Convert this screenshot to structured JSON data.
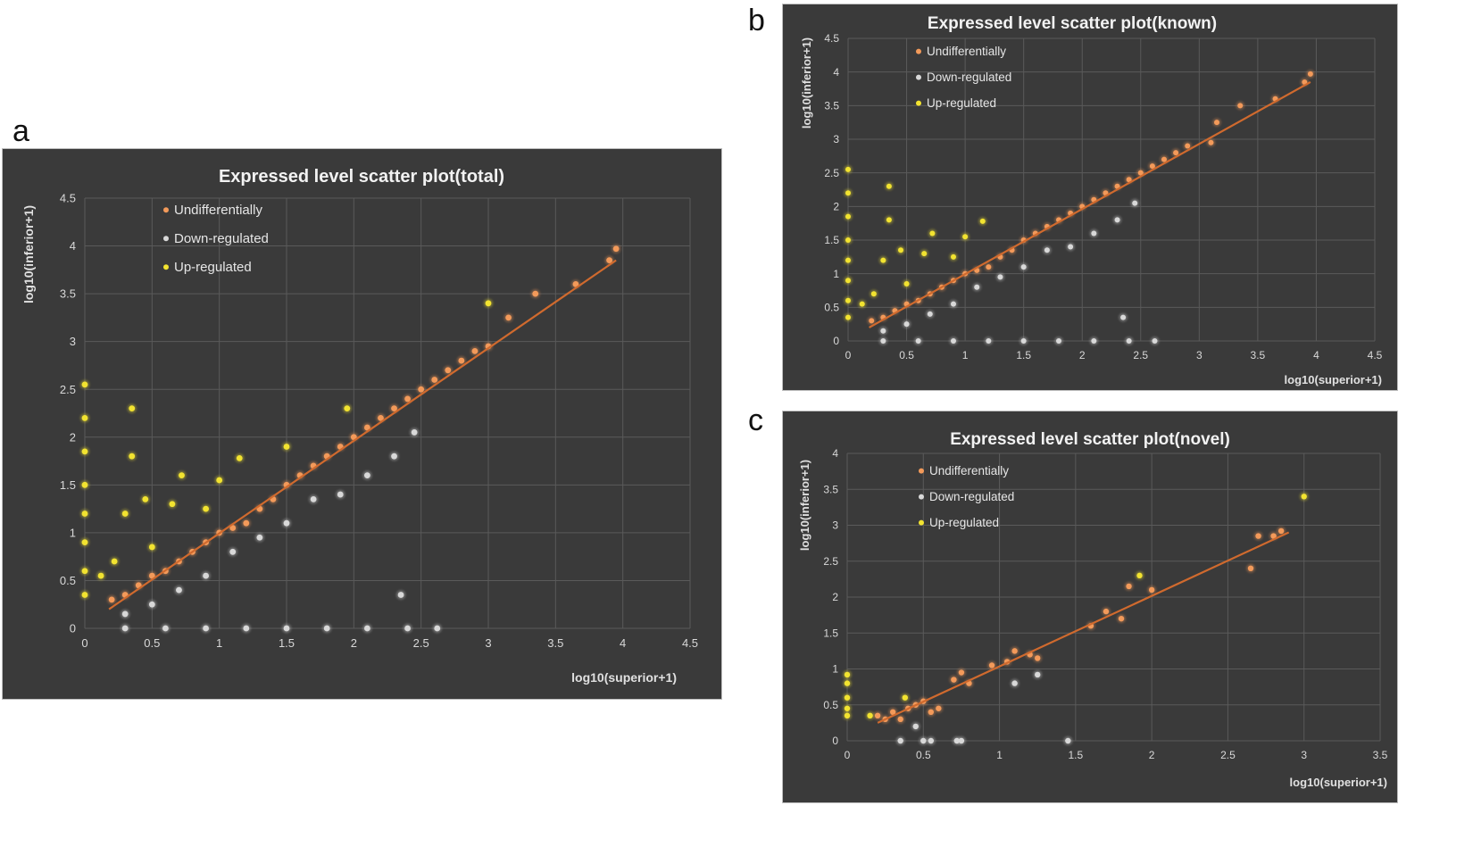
{
  "panels": {
    "a": "a",
    "b": "b",
    "c": "c"
  },
  "colors": {
    "background": "#3a3a3a",
    "grid": "#5a5a5a",
    "undiff": "#f39a5a",
    "down": "#d8d8d8",
    "up": "#f2e330",
    "trend": "#d06a2e"
  },
  "chart_data": [
    {
      "id": "a",
      "type": "scatter",
      "title": "Expressed level scatter plot(total)",
      "xlabel": "log10(superior+1)",
      "ylabel": "log10(inferior+1)",
      "xlim": [
        0,
        4.5
      ],
      "ylim": [
        0,
        4.5
      ],
      "xticks": [
        "0",
        "0.5",
        "1",
        "1.5",
        "2",
        "2.5",
        "3",
        "3.5",
        "4",
        "4.5"
      ],
      "yticks": [
        "0",
        "0.5",
        "1",
        "1.5",
        "2",
        "2.5",
        "3",
        "3.5",
        "4",
        "4.5"
      ],
      "grid": true,
      "legend_position": "top-left",
      "trendline": [
        [
          0.18,
          0.2
        ],
        [
          3.95,
          3.85
        ]
      ],
      "series": [
        {
          "name": "Undifferentially",
          "color": "#f39a5a",
          "points": [
            [
              0.2,
              0.3
            ],
            [
              0.3,
              0.35
            ],
            [
              0.4,
              0.45
            ],
            [
              0.5,
              0.55
            ],
            [
              0.6,
              0.6
            ],
            [
              0.7,
              0.7
            ],
            [
              0.8,
              0.8
            ],
            [
              0.9,
              0.9
            ],
            [
              1.0,
              1.0
            ],
            [
              1.1,
              1.05
            ],
            [
              1.2,
              1.1
            ],
            [
              1.3,
              1.25
            ],
            [
              1.4,
              1.35
            ],
            [
              1.5,
              1.5
            ],
            [
              1.6,
              1.6
            ],
            [
              1.7,
              1.7
            ],
            [
              1.8,
              1.8
            ],
            [
              1.9,
              1.9
            ],
            [
              2.0,
              2.0
            ],
            [
              2.1,
              2.1
            ],
            [
              2.2,
              2.2
            ],
            [
              2.3,
              2.3
            ],
            [
              2.4,
              2.4
            ],
            [
              2.5,
              2.5
            ],
            [
              2.6,
              2.6
            ],
            [
              2.7,
              2.7
            ],
            [
              2.8,
              2.8
            ],
            [
              2.9,
              2.9
            ],
            [
              3.0,
              2.95
            ],
            [
              3.15,
              3.25
            ],
            [
              3.35,
              3.5
            ],
            [
              3.65,
              3.6
            ],
            [
              3.9,
              3.85
            ],
            [
              3.95,
              3.97
            ]
          ]
        },
        {
          "name": "Down-regulated",
          "color": "#d8d8d8",
          "points": [
            [
              0.3,
              0.15
            ],
            [
              0.5,
              0.25
            ],
            [
              0.7,
              0.4
            ],
            [
              0.9,
              0.55
            ],
            [
              1.1,
              0.8
            ],
            [
              1.3,
              0.95
            ],
            [
              1.5,
              1.1
            ],
            [
              1.7,
              1.35
            ],
            [
              1.9,
              1.4
            ],
            [
              2.1,
              1.6
            ],
            [
              2.3,
              1.8
            ],
            [
              2.45,
              2.05
            ],
            [
              2.35,
              0.35
            ],
            [
              0.3,
              0.0
            ],
            [
              0.6,
              0.0
            ],
            [
              0.9,
              0.0
            ],
            [
              1.2,
              0.0
            ],
            [
              1.5,
              0.0
            ],
            [
              1.8,
              0.0
            ],
            [
              2.1,
              0.0
            ],
            [
              2.4,
              0.0
            ],
            [
              2.62,
              0.0
            ]
          ]
        },
        {
          "name": "Up-regulated",
          "color": "#f2e330",
          "points": [
            [
              0.0,
              0.35
            ],
            [
              0.0,
              0.6
            ],
            [
              0.0,
              0.9
            ],
            [
              0.0,
              1.2
            ],
            [
              0.0,
              1.5
            ],
            [
              0.0,
              1.85
            ],
            [
              0.0,
              2.2
            ],
            [
              0.0,
              2.55
            ],
            [
              0.12,
              0.55
            ],
            [
              0.22,
              0.7
            ],
            [
              0.3,
              1.2
            ],
            [
              0.35,
              2.3
            ],
            [
              0.35,
              1.8
            ],
            [
              0.45,
              1.35
            ],
            [
              0.5,
              0.85
            ],
            [
              0.65,
              1.3
            ],
            [
              0.72,
              1.6
            ],
            [
              0.9,
              1.25
            ],
            [
              1.0,
              1.55
            ],
            [
              1.15,
              1.78
            ],
            [
              1.5,
              1.9
            ],
            [
              1.95,
              2.3
            ],
            [
              3.0,
              3.4
            ]
          ]
        }
      ]
    },
    {
      "id": "b",
      "type": "scatter",
      "title": "Expressed level scatter plot(known)",
      "xlabel": "log10(superior+1)",
      "ylabel": "log10(inferior+1)",
      "xlim": [
        0,
        4.5
      ],
      "ylim": [
        0,
        4.5
      ],
      "xticks": [
        "0",
        "0.5",
        "1",
        "1.5",
        "2",
        "2.5",
        "3",
        "3.5",
        "4",
        "4.5"
      ],
      "yticks": [
        "0",
        "0.5",
        "1",
        "1.5",
        "2",
        "2.5",
        "3",
        "3.5",
        "4",
        "4.5"
      ],
      "grid": true,
      "legend_position": "top-left",
      "trendline": [
        [
          0.18,
          0.2
        ],
        [
          3.95,
          3.85
        ]
      ],
      "series": [
        {
          "name": "Undifferentially",
          "color": "#f39a5a",
          "points": [
            [
              0.2,
              0.3
            ],
            [
              0.3,
              0.35
            ],
            [
              0.4,
              0.45
            ],
            [
              0.5,
              0.55
            ],
            [
              0.6,
              0.6
            ],
            [
              0.7,
              0.7
            ],
            [
              0.8,
              0.8
            ],
            [
              0.9,
              0.9
            ],
            [
              1.0,
              1.0
            ],
            [
              1.1,
              1.05
            ],
            [
              1.2,
              1.1
            ],
            [
              1.3,
              1.25
            ],
            [
              1.4,
              1.35
            ],
            [
              1.5,
              1.5
            ],
            [
              1.6,
              1.6
            ],
            [
              1.7,
              1.7
            ],
            [
              1.8,
              1.8
            ],
            [
              1.9,
              1.9
            ],
            [
              2.0,
              2.0
            ],
            [
              2.1,
              2.1
            ],
            [
              2.2,
              2.2
            ],
            [
              2.3,
              2.3
            ],
            [
              2.4,
              2.4
            ],
            [
              2.5,
              2.5
            ],
            [
              2.6,
              2.6
            ],
            [
              2.7,
              2.7
            ],
            [
              2.8,
              2.8
            ],
            [
              2.9,
              2.9
            ],
            [
              3.1,
              2.95
            ],
            [
              3.15,
              3.25
            ],
            [
              3.35,
              3.5
            ],
            [
              3.65,
              3.6
            ],
            [
              3.9,
              3.85
            ],
            [
              3.95,
              3.97
            ]
          ]
        },
        {
          "name": "Down-regulated",
          "color": "#d8d8d8",
          "points": [
            [
              0.3,
              0.15
            ],
            [
              0.5,
              0.25
            ],
            [
              0.7,
              0.4
            ],
            [
              0.9,
              0.55
            ],
            [
              1.1,
              0.8
            ],
            [
              1.3,
              0.95
            ],
            [
              1.5,
              1.1
            ],
            [
              1.7,
              1.35
            ],
            [
              1.9,
              1.4
            ],
            [
              2.1,
              1.6
            ],
            [
              2.3,
              1.8
            ],
            [
              2.45,
              2.05
            ],
            [
              2.35,
              0.35
            ],
            [
              0.3,
              0.0
            ],
            [
              0.6,
              0.0
            ],
            [
              0.9,
              0.0
            ],
            [
              1.2,
              0.0
            ],
            [
              1.5,
              0.0
            ],
            [
              1.8,
              0.0
            ],
            [
              2.1,
              0.0
            ],
            [
              2.4,
              0.0
            ],
            [
              2.62,
              0.0
            ]
          ]
        },
        {
          "name": "Up-regulated",
          "color": "#f2e330",
          "points": [
            [
              0.0,
              0.35
            ],
            [
              0.0,
              0.6
            ],
            [
              0.0,
              0.9
            ],
            [
              0.0,
              1.2
            ],
            [
              0.0,
              1.5
            ],
            [
              0.0,
              1.85
            ],
            [
              0.0,
              2.2
            ],
            [
              0.0,
              2.55
            ],
            [
              0.12,
              0.55
            ],
            [
              0.22,
              0.7
            ],
            [
              0.3,
              1.2
            ],
            [
              0.35,
              2.3
            ],
            [
              0.35,
              1.8
            ],
            [
              0.45,
              1.35
            ],
            [
              0.5,
              0.85
            ],
            [
              0.65,
              1.3
            ],
            [
              0.72,
              1.6
            ],
            [
              0.9,
              1.25
            ],
            [
              1.0,
              1.55
            ],
            [
              1.15,
              1.78
            ]
          ]
        }
      ]
    },
    {
      "id": "c",
      "type": "scatter",
      "title": "Expressed level scatter plot(novel)",
      "xlabel": "log10(superior+1)",
      "ylabel": "log10(inferior+1)",
      "xlim": [
        0,
        3.5
      ],
      "ylim": [
        0,
        4
      ],
      "xticks": [
        "0",
        "0.5",
        "1",
        "1.5",
        "2",
        "2.5",
        "3",
        "3.5"
      ],
      "yticks": [
        "0",
        "0.5",
        "1",
        "1.5",
        "2",
        "2.5",
        "3",
        "3.5",
        "4"
      ],
      "grid": true,
      "legend_position": "top-left",
      "trendline": [
        [
          0.2,
          0.25
        ],
        [
          2.9,
          2.9
        ]
      ],
      "series": [
        {
          "name": "Undifferentially",
          "color": "#f39a5a",
          "points": [
            [
              0.2,
              0.35
            ],
            [
              0.25,
              0.3
            ],
            [
              0.3,
              0.4
            ],
            [
              0.35,
              0.3
            ],
            [
              0.4,
              0.45
            ],
            [
              0.45,
              0.5
            ],
            [
              0.5,
              0.55
            ],
            [
              0.55,
              0.4
            ],
            [
              0.6,
              0.45
            ],
            [
              0.7,
              0.85
            ],
            [
              0.75,
              0.95
            ],
            [
              0.8,
              0.8
            ],
            [
              0.95,
              1.05
            ],
            [
              1.05,
              1.1
            ],
            [
              1.1,
              1.25
            ],
            [
              1.2,
              1.2
            ],
            [
              1.25,
              1.15
            ],
            [
              1.6,
              1.6
            ],
            [
              1.7,
              1.8
            ],
            [
              1.8,
              1.7
            ],
            [
              1.85,
              2.15
            ],
            [
              2.0,
              2.1
            ],
            [
              2.65,
              2.4
            ],
            [
              2.7,
              2.85
            ],
            [
              2.8,
              2.85
            ],
            [
              2.85,
              2.92
            ]
          ]
        },
        {
          "name": "Down-regulated",
          "color": "#d8d8d8",
          "points": [
            [
              0.35,
              0.0
            ],
            [
              0.5,
              0.0
            ],
            [
              0.55,
              0.0
            ],
            [
              0.72,
              0.0
            ],
            [
              0.75,
              0.0
            ],
            [
              1.45,
              0.0
            ],
            [
              0.45,
              0.2
            ],
            [
              1.1,
              0.8
            ],
            [
              1.25,
              0.92
            ]
          ]
        },
        {
          "name": "Up-regulated",
          "color": "#f2e330",
          "points": [
            [
              0.0,
              0.35
            ],
            [
              0.0,
              0.45
            ],
            [
              0.0,
              0.6
            ],
            [
              0.0,
              0.8
            ],
            [
              0.0,
              0.92
            ],
            [
              0.15,
              0.35
            ],
            [
              0.38,
              0.6
            ],
            [
              1.92,
              2.3
            ],
            [
              3.0,
              3.4
            ]
          ]
        }
      ]
    }
  ]
}
